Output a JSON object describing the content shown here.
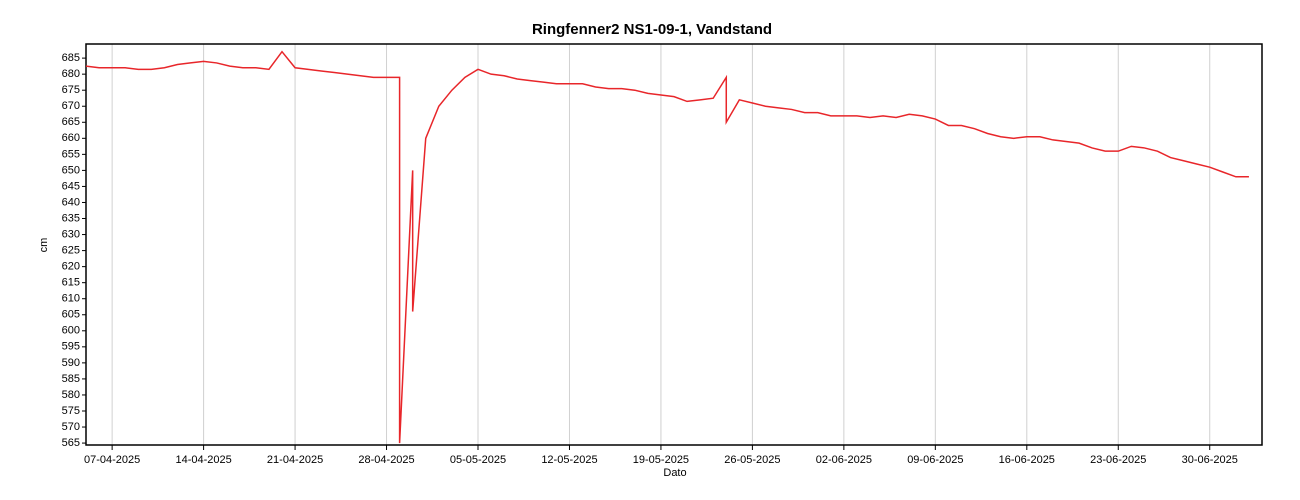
{
  "chart_data": {
    "type": "line",
    "title": "Ringfenner2 NS1-09-1, Vandstand",
    "x_label": "Dato",
    "y_label": "cm",
    "x": [
      "05-04-2025",
      "06-04-2025",
      "07-04-2025",
      "08-04-2025",
      "09-04-2025",
      "10-04-2025",
      "11-04-2025",
      "12-04-2025",
      "13-04-2025",
      "14-04-2025",
      "15-04-2025",
      "16-04-2025",
      "17-04-2025",
      "18-04-2025",
      "19-04-2025",
      "20-04-2025",
      "21-04-2025",
      "22-04-2025",
      "23-04-2025",
      "24-04-2025",
      "25-04-2025",
      "26-04-2025",
      "27-04-2025",
      "28-04-2025",
      "29-04-2025",
      "29-04-2025",
      "30-04-2025",
      "30-04-2025",
      "01-05-2025",
      "02-05-2025",
      "03-05-2025",
      "04-05-2025",
      "05-05-2025",
      "06-05-2025",
      "07-05-2025",
      "08-05-2025",
      "09-05-2025",
      "10-05-2025",
      "11-05-2025",
      "12-05-2025",
      "13-05-2025",
      "14-05-2025",
      "15-05-2025",
      "16-05-2025",
      "17-05-2025",
      "18-05-2025",
      "19-05-2025",
      "20-05-2025",
      "21-05-2025",
      "22-05-2025",
      "23-05-2025",
      "24-05-2025",
      "24-05-2025",
      "25-05-2025",
      "26-05-2025",
      "27-05-2025",
      "28-05-2025",
      "29-05-2025",
      "30-05-2025",
      "31-05-2025",
      "01-06-2025",
      "02-06-2025",
      "03-06-2025",
      "04-06-2025",
      "05-06-2025",
      "06-06-2025",
      "07-06-2025",
      "08-06-2025",
      "09-06-2025",
      "10-06-2025",
      "11-06-2025",
      "12-06-2025",
      "13-06-2025",
      "14-06-2025",
      "15-06-2025",
      "16-06-2025",
      "17-06-2025",
      "18-06-2025",
      "19-06-2025",
      "20-06-2025",
      "21-06-2025",
      "22-06-2025",
      "23-06-2025",
      "24-06-2025",
      "25-06-2025",
      "26-06-2025",
      "27-06-2025",
      "28-06-2025",
      "29-06-2025",
      "30-06-2025",
      "01-07-2025",
      "02-07-2025",
      "03-07-2025"
    ],
    "series": [
      {
        "name": "Vandstand",
        "color": "#e8262a",
        "values": [
          682.5,
          682,
          682,
          682,
          681.5,
          681.5,
          682,
          683,
          683.5,
          684,
          683.5,
          682.5,
          682,
          682,
          681.5,
          687,
          682,
          681.5,
          681,
          680.5,
          680,
          679.5,
          679,
          679,
          679,
          565,
          650,
          606,
          660,
          670,
          675,
          679,
          681.5,
          680,
          679.5,
          678.5,
          678,
          677.5,
          677,
          677,
          677,
          676,
          675.5,
          675.5,
          675,
          674,
          673.5,
          673,
          671.5,
          672,
          672.5,
          679,
          665,
          672,
          671,
          670,
          669.5,
          669,
          668,
          668,
          667,
          667,
          667,
          666.5,
          667,
          666.5,
          667.5,
          667,
          666,
          664,
          664,
          663,
          661.5,
          660.5,
          660,
          660.5,
          660.5,
          659.5,
          659,
          658.5,
          657,
          656,
          656,
          657.5,
          657,
          656,
          654,
          653,
          652,
          651,
          649.5,
          648,
          648
        ]
      }
    ],
    "xlim": [
      "05-04-2025",
      "04-07-2025"
    ],
    "xticks": [
      "07-04-2025",
      "14-04-2025",
      "21-04-2025",
      "28-04-2025",
      "05-05-2025",
      "12-05-2025",
      "19-05-2025",
      "26-05-2025",
      "02-06-2025",
      "09-06-2025",
      "16-06-2025",
      "23-06-2025",
      "30-06-2025"
    ],
    "ylim": [
      564.4,
      689.4
    ],
    "yticks": [
      565,
      570,
      575,
      580,
      585,
      590,
      595,
      600,
      605,
      610,
      615,
      620,
      625,
      630,
      635,
      640,
      645,
      650,
      655,
      660,
      665,
      670,
      675,
      680,
      685
    ],
    "grid": "x"
  }
}
